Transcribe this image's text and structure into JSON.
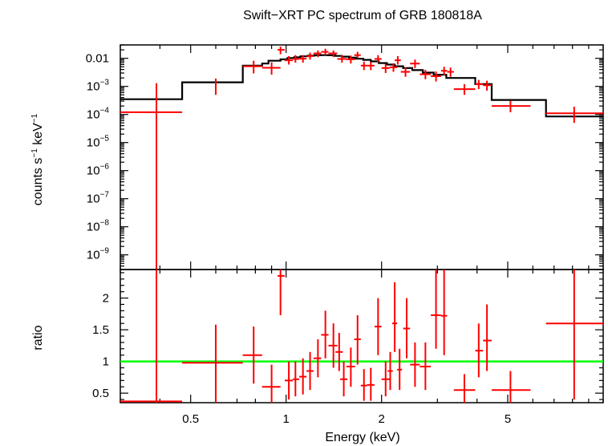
{
  "chart_data": [
    {
      "panel": "spectrum",
      "type": "scatter",
      "title": "Swift−XRT PC spectrum of GRB 180818A",
      "ylabel": "counts s⁻¹ keV⁻¹",
      "xscale": "log",
      "yscale": "log",
      "xlim": [
        0.3,
        10
      ],
      "ylim": [
        3e-10,
        0.03
      ],
      "y_tick_labels": [
        "0.01",
        "10⁻³",
        "10⁻⁴",
        "10⁻⁵",
        "10⁻⁶",
        "10⁻⁷",
        "10⁻⁸",
        "10⁻⁹"
      ],
      "y_tick_values": [
        0.01,
        0.001,
        0.0001,
        1e-05,
        1e-06,
        1e-07,
        1e-08,
        1e-09
      ],
      "series": [
        {
          "kind": "data",
          "color": "#ff0000",
          "points": [
            {
              "x": 0.39,
              "xlo": 0.3,
              "xhi": 0.47,
              "y": 0.00012,
              "ylo": 3e-10,
              "yhi": 0.0013
            },
            {
              "x": 0.6,
              "xlo": 0.6,
              "xhi": 0.6,
              "y": 0.0011,
              "ylo": 0.0005,
              "yhi": 0.0019
            },
            {
              "x": 0.79,
              "xlo": 0.73,
              "xhi": 0.84,
              "y": 0.0052,
              "ylo": 0.0029,
              "yhi": 0.0082
            },
            {
              "x": 0.9,
              "xlo": 0.84,
              "xhi": 0.96,
              "y": 0.0046,
              "ylo": 0.0026,
              "yhi": 0.0072
            },
            {
              "x": 0.96,
              "xlo": 0.94,
              "xhi": 0.99,
              "y": 0.02,
              "ylo": 0.014,
              "yhi": 0.026
            },
            {
              "x": 1.02,
              "xlo": 0.99,
              "xhi": 1.05,
              "y": 0.0085,
              "ylo": 0.006,
              "yhi": 0.012
            },
            {
              "x": 1.07,
              "xlo": 1.05,
              "xhi": 1.1,
              "y": 0.0095,
              "ylo": 0.007,
              "yhi": 0.013
            },
            {
              "x": 1.13,
              "xlo": 1.1,
              "xhi": 1.16,
              "y": 0.0097,
              "ylo": 0.007,
              "yhi": 0.013
            },
            {
              "x": 1.19,
              "xlo": 1.16,
              "xhi": 1.22,
              "y": 0.012,
              "ylo": 0.009,
              "yhi": 0.016
            },
            {
              "x": 1.26,
              "xlo": 1.22,
              "xhi": 1.29,
              "y": 0.015,
              "ylo": 0.011,
              "yhi": 0.019
            },
            {
              "x": 1.33,
              "xlo": 1.29,
              "xhi": 1.36,
              "y": 0.017,
              "ylo": 0.013,
              "yhi": 0.022
            },
            {
              "x": 1.41,
              "xlo": 1.36,
              "xhi": 1.45,
              "y": 0.015,
              "ylo": 0.011,
              "yhi": 0.019
            },
            {
              "x": 1.5,
              "xlo": 1.45,
              "xhi": 1.55,
              "y": 0.0095,
              "ylo": 0.007,
              "yhi": 0.013
            },
            {
              "x": 1.6,
              "xlo": 1.55,
              "xhi": 1.65,
              "y": 0.0092,
              "ylo": 0.0065,
              "yhi": 0.0125
            },
            {
              "x": 1.68,
              "xlo": 1.64,
              "xhi": 1.72,
              "y": 0.013,
              "ylo": 0.01,
              "yhi": 0.017
            },
            {
              "x": 1.76,
              "xlo": 1.72,
              "xhi": 1.8,
              "y": 0.0055,
              "ylo": 0.0038,
              "yhi": 0.0076
            },
            {
              "x": 1.85,
              "xlo": 1.8,
              "xhi": 1.9,
              "y": 0.0055,
              "ylo": 0.0038,
              "yhi": 0.0076
            },
            {
              "x": 1.95,
              "xlo": 1.9,
              "xhi": 2.0,
              "y": 0.0095,
              "ylo": 0.007,
              "yhi": 0.013
            },
            {
              "x": 2.06,
              "xlo": 2.0,
              "xhi": 2.12,
              "y": 0.0045,
              "ylo": 0.003,
              "yhi": 0.0063
            },
            {
              "x": 2.18,
              "xlo": 2.12,
              "xhi": 2.24,
              "y": 0.0048,
              "ylo": 0.0033,
              "yhi": 0.0066
            },
            {
              "x": 2.25,
              "xlo": 2.2,
              "xhi": 2.3,
              "y": 0.0085,
              "ylo": 0.006,
              "yhi": 0.012
            },
            {
              "x": 2.38,
              "xlo": 2.3,
              "xhi": 2.46,
              "y": 0.0033,
              "ylo": 0.0022,
              "yhi": 0.0048
            },
            {
              "x": 2.55,
              "xlo": 2.46,
              "xhi": 2.64,
              "y": 0.0065,
              "ylo": 0.0045,
              "yhi": 0.009
            },
            {
              "x": 2.75,
              "xlo": 2.64,
              "xhi": 2.86,
              "y": 0.0027,
              "ylo": 0.0018,
              "yhi": 0.0039
            },
            {
              "x": 2.97,
              "xlo": 2.86,
              "xhi": 3.08,
              "y": 0.0023,
              "ylo": 0.0015,
              "yhi": 0.0034
            },
            {
              "x": 3.15,
              "xlo": 3.08,
              "xhi": 3.22,
              "y": 0.0036,
              "ylo": 0.0025,
              "yhi": 0.005
            },
            {
              "x": 3.3,
              "xlo": 3.22,
              "xhi": 3.38,
              "y": 0.0033,
              "ylo": 0.0022,
              "yhi": 0.0047
            },
            {
              "x": 3.65,
              "xlo": 3.38,
              "xhi": 3.95,
              "y": 0.0008,
              "ylo": 0.0005,
              "yhi": 0.0012
            },
            {
              "x": 4.05,
              "xlo": 3.95,
              "xhi": 4.18,
              "y": 0.0012,
              "ylo": 0.0008,
              "yhi": 0.0017
            },
            {
              "x": 4.3,
              "xlo": 4.18,
              "xhi": 4.45,
              "y": 0.0011,
              "ylo": 0.0007,
              "yhi": 0.0016
            },
            {
              "x": 5.1,
              "xlo": 4.45,
              "xhi": 5.9,
              "y": 0.0002,
              "ylo": 0.00012,
              "yhi": 0.00031
            },
            {
              "x": 8.1,
              "xlo": 6.6,
              "xhi": 10.0,
              "y": 0.00011,
              "ylo": 5e-05,
              "yhi": 0.00019
            }
          ]
        },
        {
          "kind": "model",
          "color": "#000000",
          "steps": [
            {
              "xlo": 0.3,
              "xhi": 0.47,
              "y": 0.00035
            },
            {
              "xlo": 0.47,
              "xhi": 0.73,
              "y": 0.0014
            },
            {
              "xlo": 0.73,
              "xhi": 0.84,
              "y": 0.0055
            },
            {
              "xlo": 0.84,
              "xhi": 0.88,
              "y": 0.0065
            },
            {
              "xlo": 0.88,
              "xhi": 0.96,
              "y": 0.0082
            },
            {
              "xlo": 0.96,
              "xhi": 1.01,
              "y": 0.0092
            },
            {
              "xlo": 1.01,
              "xhi": 1.06,
              "y": 0.0102
            },
            {
              "xlo": 1.06,
              "xhi": 1.11,
              "y": 0.011
            },
            {
              "xlo": 1.11,
              "xhi": 1.17,
              "y": 0.0118
            },
            {
              "xlo": 1.17,
              "xhi": 1.23,
              "y": 0.0124
            },
            {
              "xlo": 1.23,
              "xhi": 1.29,
              "y": 0.0128
            },
            {
              "xlo": 1.29,
              "xhi": 1.36,
              "y": 0.013
            },
            {
              "xlo": 1.36,
              "xhi": 1.43,
              "y": 0.0128
            },
            {
              "xlo": 1.43,
              "xhi": 1.5,
              "y": 0.0122
            },
            {
              "xlo": 1.5,
              "xhi": 1.58,
              "y": 0.0115
            },
            {
              "xlo": 1.58,
              "xhi": 1.66,
              "y": 0.0106
            },
            {
              "xlo": 1.66,
              "xhi": 1.75,
              "y": 0.0097
            },
            {
              "xlo": 1.75,
              "xhi": 1.85,
              "y": 0.0088
            },
            {
              "xlo": 1.85,
              "xhi": 1.96,
              "y": 0.0078
            },
            {
              "xlo": 1.96,
              "xhi": 2.08,
              "y": 0.0068
            },
            {
              "xlo": 2.08,
              "xhi": 2.2,
              "y": 0.006
            },
            {
              "xlo": 2.2,
              "xhi": 2.34,
              "y": 0.0052
            },
            {
              "xlo": 2.34,
              "xhi": 2.5,
              "y": 0.0045
            },
            {
              "xlo": 2.5,
              "xhi": 2.7,
              "y": 0.0038
            },
            {
              "xlo": 2.7,
              "xhi": 2.92,
              "y": 0.0031
            },
            {
              "xlo": 2.92,
              "xhi": 3.2,
              "y": 0.0026
            },
            {
              "xlo": 3.2,
              "xhi": 3.95,
              "y": 0.002
            },
            {
              "xlo": 3.95,
              "xhi": 4.45,
              "y": 0.0012
            },
            {
              "xlo": 4.45,
              "xhi": 6.6,
              "y": 0.00033
            },
            {
              "xlo": 6.6,
              "xhi": 10.0,
              "y": 8.5e-05
            }
          ]
        }
      ]
    },
    {
      "panel": "ratio",
      "type": "scatter",
      "xlabel": "Energy (keV)",
      "ylabel": "ratio",
      "xscale": "log",
      "yscale": "linear",
      "xlim": [
        0.3,
        10
      ],
      "ylim": [
        0.35,
        2.45
      ],
      "x_tick_labels": [
        "0.5",
        "1",
        "2",
        "5"
      ],
      "x_tick_values": [
        0.5,
        1,
        2,
        5
      ],
      "y_tick_labels": [
        "0.5",
        "1",
        "1.5",
        "2"
      ],
      "y_tick_values": [
        0.5,
        1,
        1.5,
        2
      ],
      "reference_line": {
        "y": 1,
        "color": "#00ff00"
      },
      "series": [
        {
          "kind": "data",
          "color": "#ff0000",
          "points": [
            {
              "x": 0.39,
              "xlo": 0.3,
              "xhi": 0.47,
              "y": 0.37,
              "ylo": 0.35,
              "yhi": 2.45
            },
            {
              "x": 0.6,
              "xlo": 0.47,
              "xhi": 0.73,
              "y": 0.98,
              "ylo": 0.35,
              "yhi": 1.58
            },
            {
              "x": 0.79,
              "xlo": 0.73,
              "xhi": 0.84,
              "y": 1.1,
              "ylo": 0.65,
              "yhi": 1.55
            },
            {
              "x": 0.9,
              "xlo": 0.84,
              "xhi": 0.96,
              "y": 0.6,
              "ylo": 0.35,
              "yhi": 0.95
            },
            {
              "x": 0.96,
              "xlo": 0.94,
              "xhi": 0.99,
              "y": 2.35,
              "ylo": 1.73,
              "yhi": 2.45
            },
            {
              "x": 1.02,
              "xlo": 0.99,
              "xhi": 1.05,
              "y": 0.7,
              "ylo": 0.4,
              "yhi": 1.0
            },
            {
              "x": 1.07,
              "xlo": 1.05,
              "xhi": 1.1,
              "y": 0.72,
              "ylo": 0.45,
              "yhi": 1.0
            },
            {
              "x": 1.13,
              "xlo": 1.1,
              "xhi": 1.16,
              "y": 0.76,
              "ylo": 0.48,
              "yhi": 1.05
            },
            {
              "x": 1.19,
              "xlo": 1.16,
              "xhi": 1.22,
              "y": 0.85,
              "ylo": 0.55,
              "yhi": 1.15
            },
            {
              "x": 1.26,
              "xlo": 1.22,
              "xhi": 1.29,
              "y": 1.05,
              "ylo": 0.75,
              "yhi": 1.35
            },
            {
              "x": 1.33,
              "xlo": 1.29,
              "xhi": 1.36,
              "y": 1.42,
              "ylo": 1.05,
              "yhi": 1.8
            },
            {
              "x": 1.41,
              "xlo": 1.36,
              "xhi": 1.45,
              "y": 1.25,
              "ylo": 0.9,
              "yhi": 1.6
            },
            {
              "x": 1.47,
              "xlo": 1.43,
              "xhi": 1.51,
              "y": 1.15,
              "ylo": 0.85,
              "yhi": 1.45
            },
            {
              "x": 1.52,
              "xlo": 1.48,
              "xhi": 1.56,
              "y": 0.72,
              "ylo": 0.45,
              "yhi": 1.0
            },
            {
              "x": 1.6,
              "xlo": 1.55,
              "xhi": 1.65,
              "y": 0.92,
              "ylo": 0.6,
              "yhi": 1.22
            },
            {
              "x": 1.68,
              "xlo": 1.64,
              "xhi": 1.72,
              "y": 1.35,
              "ylo": 0.95,
              "yhi": 1.73
            },
            {
              "x": 1.76,
              "xlo": 1.72,
              "xhi": 1.8,
              "y": 0.62,
              "ylo": 0.38,
              "yhi": 0.88
            },
            {
              "x": 1.85,
              "xlo": 1.8,
              "xhi": 1.9,
              "y": 0.63,
              "ylo": 0.38,
              "yhi": 0.9
            },
            {
              "x": 1.95,
              "xlo": 1.9,
              "xhi": 2.0,
              "y": 1.55,
              "ylo": 1.1,
              "yhi": 2.0
            },
            {
              "x": 2.06,
              "xlo": 2.0,
              "xhi": 2.12,
              "y": 0.72,
              "ylo": 0.45,
              "yhi": 1.0
            },
            {
              "x": 2.13,
              "xlo": 2.09,
              "xhi": 2.17,
              "y": 0.85,
              "ylo": 0.55,
              "yhi": 1.15
            },
            {
              "x": 2.2,
              "xlo": 2.16,
              "xhi": 2.24,
              "y": 1.6,
              "ylo": 1.15,
              "yhi": 2.25
            },
            {
              "x": 2.28,
              "xlo": 2.24,
              "xhi": 2.32,
              "y": 0.87,
              "ylo": 0.55,
              "yhi": 1.2
            },
            {
              "x": 2.4,
              "xlo": 2.34,
              "xhi": 2.46,
              "y": 1.52,
              "ylo": 1.05,
              "yhi": 2.0
            },
            {
              "x": 2.55,
              "xlo": 2.46,
              "xhi": 2.64,
              "y": 0.95,
              "ylo": 0.6,
              "yhi": 1.3
            },
            {
              "x": 2.75,
              "xlo": 2.64,
              "xhi": 2.86,
              "y": 0.92,
              "ylo": 0.55,
              "yhi": 1.3
            },
            {
              "x": 2.97,
              "xlo": 2.86,
              "xhi": 3.08,
              "y": 1.73,
              "ylo": 1.2,
              "yhi": 2.45
            },
            {
              "x": 3.15,
              "xlo": 3.08,
              "xhi": 3.22,
              "y": 1.72,
              "ylo": 1.1,
              "yhi": 2.45
            },
            {
              "x": 3.65,
              "xlo": 3.38,
              "xhi": 3.95,
              "y": 0.55,
              "ylo": 0.35,
              "yhi": 0.8
            },
            {
              "x": 4.05,
              "xlo": 3.95,
              "xhi": 4.18,
              "y": 1.17,
              "ylo": 0.75,
              "yhi": 1.6
            },
            {
              "x": 4.3,
              "xlo": 4.18,
              "xhi": 4.45,
              "y": 1.33,
              "ylo": 0.85,
              "yhi": 1.9
            },
            {
              "x": 5.1,
              "xlo": 4.45,
              "xhi": 5.9,
              "y": 0.55,
              "ylo": 0.35,
              "yhi": 0.85
            },
            {
              "x": 8.1,
              "xlo": 6.6,
              "xhi": 10.0,
              "y": 1.6,
              "ylo": 0.4,
              "yhi": 2.45
            }
          ]
        }
      ]
    }
  ]
}
